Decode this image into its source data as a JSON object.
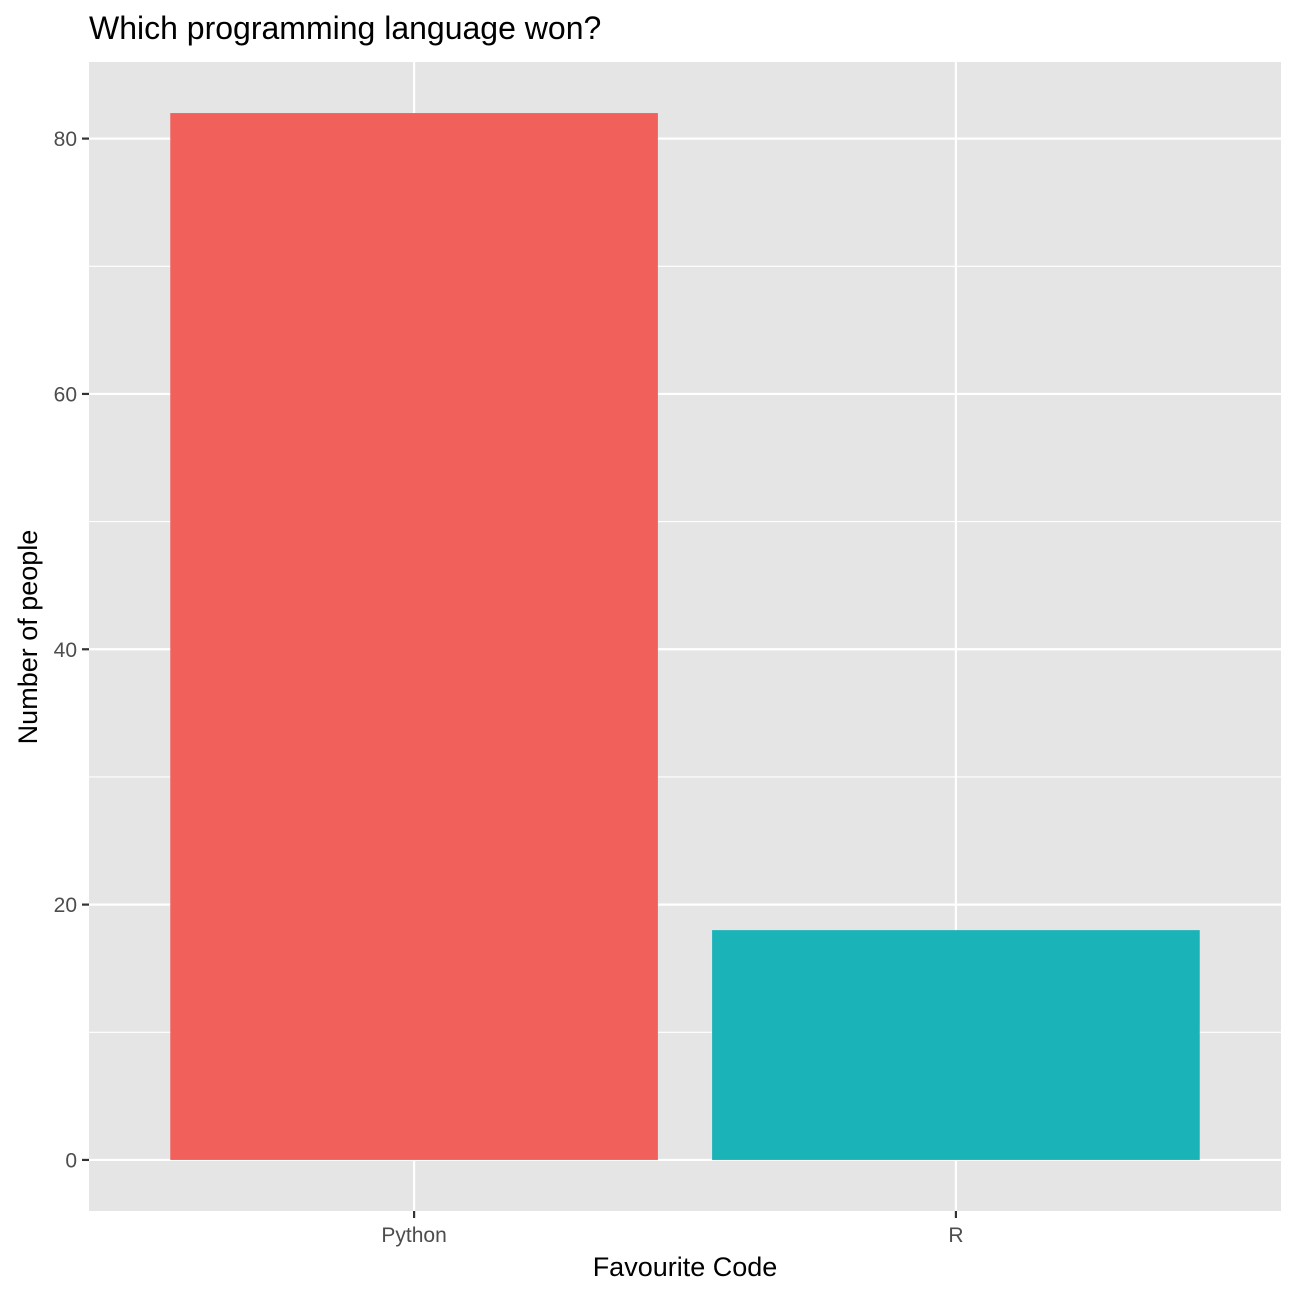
{
  "chart_data": {
    "type": "bar",
    "title": "Which programming language won?",
    "xlabel": "Favourite Code",
    "ylabel": "Number of people",
    "categories": [
      "Python",
      "R"
    ],
    "values": [
      82,
      18
    ],
    "colors": [
      "#f2605b",
      "#1ab3b8"
    ],
    "ylim": [
      -4,
      86
    ],
    "yticks": [
      0,
      20,
      40,
      60,
      80
    ],
    "yticks_minor": [
      10,
      30,
      50,
      70
    ],
    "grid": true,
    "legend": "none",
    "panel_background": "#e5e5e5"
  }
}
